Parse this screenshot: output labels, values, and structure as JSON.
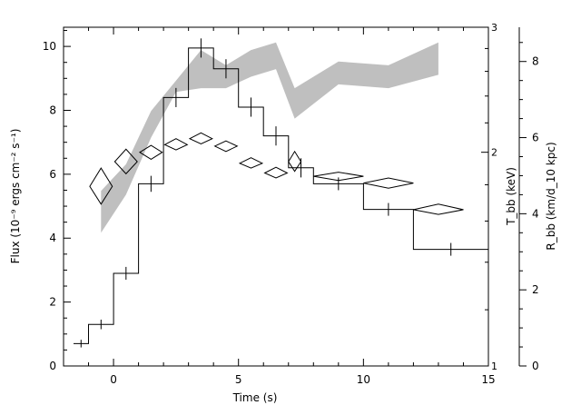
{
  "chart_data": {
    "type": "line",
    "title": "",
    "xlabel": "Time (s)",
    "xlim": [
      -2,
      15
    ],
    "x_ticks": [
      0,
      5,
      10,
      15
    ],
    "grid": false,
    "legend": "none",
    "axes": {
      "left": {
        "label": "Flux (10⁻⁹ ergs cm⁻² s⁻¹)",
        "ylim": [
          0,
          10.6
        ],
        "ticks": [
          0,
          2,
          4,
          6,
          8,
          10
        ]
      },
      "right_inner": {
        "label": "T_bb (keV)",
        "scale": "log",
        "ylim": [
          1,
          3
        ],
        "ticks": [
          1,
          2,
          3
        ]
      },
      "right_outer": {
        "label": "R_bb (km/d_10 kpc)",
        "ylim": [
          0,
          8.9
        ],
        "ticks": [
          0,
          2,
          4,
          6,
          8
        ]
      }
    },
    "series": [
      {
        "kind": "step-histogram",
        "axis": "left",
        "color": "#000000",
        "bins": [
          {
            "x0": -1.6,
            "x1": -1.0,
            "y": 0.7,
            "err": 0.12
          },
          {
            "x0": -1.0,
            "x1": 0.0,
            "y": 1.3,
            "err": 0.15
          },
          {
            "x0": 0.0,
            "x1": 1.0,
            "y": 2.9,
            "err": 0.2
          },
          {
            "x0": 1.0,
            "x1": 2.0,
            "y": 5.7,
            "err": 0.25
          },
          {
            "x0": 2.0,
            "x1": 3.0,
            "y": 8.4,
            "err": 0.3
          },
          {
            "x0": 3.0,
            "x1": 4.0,
            "y": 9.95,
            "err": 0.3
          },
          {
            "x0": 4.0,
            "x1": 5.0,
            "y": 9.3,
            "err": 0.3
          },
          {
            "x0": 5.0,
            "x1": 6.0,
            "y": 8.1,
            "err": 0.3
          },
          {
            "x0": 6.0,
            "x1": 7.0,
            "y": 7.2,
            "err": 0.3
          },
          {
            "x0": 7.0,
            "x1": 8.0,
            "y": 6.2,
            "err": 0.3
          },
          {
            "x0": 8.0,
            "x1": 10.0,
            "y": 5.7,
            "err": 0.2
          },
          {
            "x0": 10.0,
            "x1": 12.0,
            "y": 4.9,
            "err": 0.2
          },
          {
            "x0": 12.0,
            "x1": 15.0,
            "y": 3.65,
            "err": 0.2
          }
        ]
      },
      {
        "kind": "band",
        "axis": "right_outer",
        "color": "#bfbfbf",
        "x": [
          -0.5,
          0.5,
          1.5,
          2.5,
          3.5,
          4.5,
          5.5,
          6.5,
          7.25,
          9.0,
          11.0,
          13.0
        ],
        "low": [
          3.5,
          4.5,
          6.0,
          7.2,
          7.3,
          7.3,
          7.6,
          7.8,
          6.5,
          7.4,
          7.3,
          7.65
        ],
        "high": [
          4.6,
          5.3,
          6.7,
          7.5,
          8.3,
          7.9,
          8.3,
          8.5,
          7.3,
          8.0,
          7.9,
          8.5
        ]
      },
      {
        "kind": "diamond-errors",
        "axis": "right_inner",
        "color": "#000000",
        "points": [
          {
            "x": -0.5,
            "y": 1.79,
            "xerr": 0.45,
            "yerr_lo": 0.1,
            "yerr_hi": 0.11
          },
          {
            "x": 0.5,
            "y": 1.94,
            "xerr": 0.45,
            "yerr_lo": 0.075,
            "yerr_hi": 0.08
          },
          {
            "x": 1.5,
            "y": 2.0,
            "xerr": 0.45,
            "yerr_lo": 0.045,
            "yerr_hi": 0.045
          },
          {
            "x": 2.5,
            "y": 2.05,
            "xerr": 0.45,
            "yerr_lo": 0.035,
            "yerr_hi": 0.04
          },
          {
            "x": 3.5,
            "y": 2.09,
            "xerr": 0.45,
            "yerr_lo": 0.035,
            "yerr_hi": 0.04
          },
          {
            "x": 4.5,
            "y": 2.04,
            "xerr": 0.45,
            "yerr_lo": 0.035,
            "yerr_hi": 0.035
          },
          {
            "x": 5.5,
            "y": 1.93,
            "xerr": 0.45,
            "yerr_lo": 0.03,
            "yerr_hi": 0.035
          },
          {
            "x": 6.5,
            "y": 1.87,
            "xerr": 0.45,
            "yerr_lo": 0.03,
            "yerr_hi": 0.035
          },
          {
            "x": 7.25,
            "y": 1.94,
            "xerr": 0.25,
            "yerr_lo": 0.06,
            "yerr_hi": 0.065
          },
          {
            "x": 9.0,
            "y": 1.85,
            "xerr": 1.0,
            "yerr_lo": 0.025,
            "yerr_hi": 0.025
          },
          {
            "x": 11.0,
            "y": 1.81,
            "xerr": 1.0,
            "yerr_lo": 0.03,
            "yerr_hi": 0.03
          },
          {
            "x": 13.0,
            "y": 1.66,
            "xerr": 1.0,
            "yerr_lo": 0.025,
            "yerr_hi": 0.03
          }
        ]
      }
    ]
  }
}
